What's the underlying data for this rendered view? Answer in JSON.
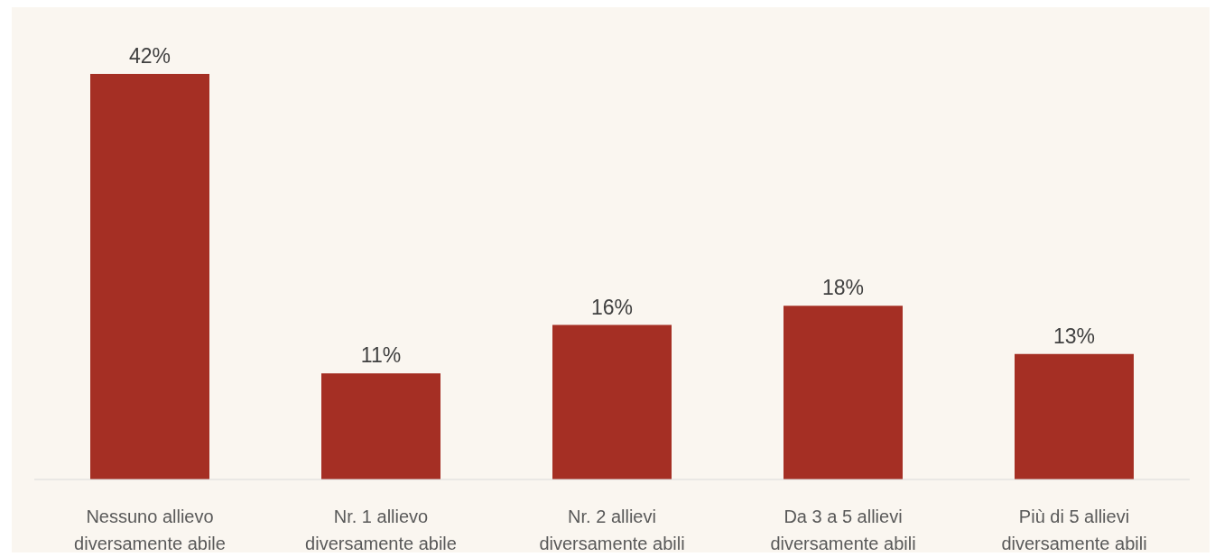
{
  "chart_data": {
    "type": "bar",
    "categories": [
      "Nessuno allievo diversamente abile",
      "Nr. 1 allievo diversamente abile",
      "Nr. 2 allievi diversamente abili",
      "Da 3 a 5 allievi diversamente abili",
      "Più di 5 allievi diversamente abili"
    ],
    "values": [
      42,
      11,
      16,
      18,
      13
    ],
    "value_labels": [
      "42%",
      "11%",
      "16%",
      "18%",
      "13%"
    ],
    "color": "#a52f24"
  }
}
